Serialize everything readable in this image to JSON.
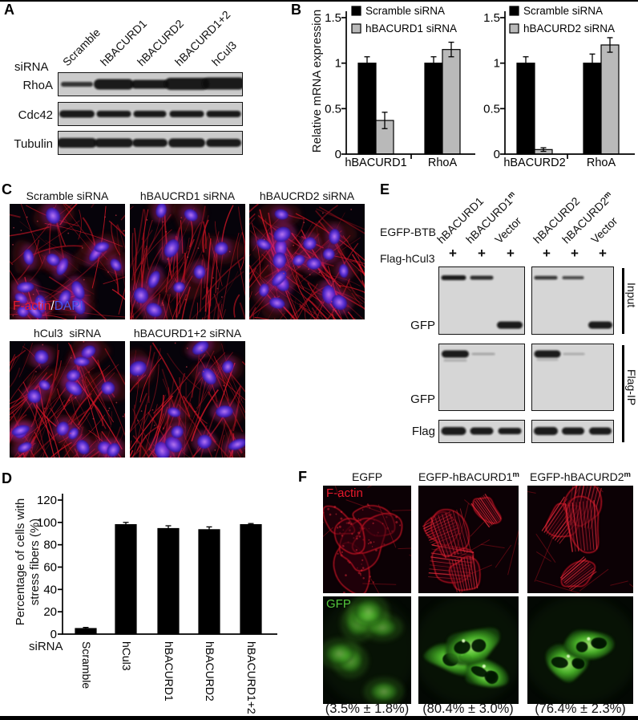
{
  "panels": {
    "A": {
      "letter": "A",
      "sirna_label": "siRNA",
      "lanes": [
        "Scramble",
        "hBACURD1",
        "hBACURD2",
        "hBACURD1+2",
        "hCul3"
      ],
      "rows": [
        "RhoA",
        "Cdc42",
        "Tubulin"
      ]
    },
    "B": {
      "letter": "B"
    },
    "C": {
      "letter": "C",
      "captions": [
        "Scramble siRNA",
        "hBAUCRD1 siRNA",
        "hBAUCRD2 siRNA",
        "hCul3  siRNA",
        "hBACURD1+2 siRNA"
      ],
      "overlay": {
        "factin": "F-actin",
        "slash": "/",
        "dapi": "DAPI"
      }
    },
    "D": {
      "letter": "D"
    },
    "E": {
      "letter": "E",
      "egfp_btb": "EGFP-BTB",
      "flag_hcul3": "Flag-hCul3",
      "plus": "+",
      "lanes": [
        {
          "t": "hBACURD1",
          "sup": ""
        },
        {
          "t": "hBACURD1",
          "sup": "m"
        },
        {
          "t": "Vector",
          "sup": ""
        },
        {
          "t": "hBACURD2",
          "sup": ""
        },
        {
          "t": "hBACURD2",
          "sup": "m"
        },
        {
          "t": "Vector",
          "sup": ""
        }
      ],
      "gfp": "GFP",
      "flag": "Flag",
      "input": "Input",
      "flag_ip": "Flag-IP"
    },
    "F": {
      "letter": "F",
      "headers": [
        {
          "t": "EGFP",
          "sup": ""
        },
        {
          "t": "EGFP-hBACURD1",
          "sup": "m"
        },
        {
          "t": "EGFP-hBACURD2",
          "sup": "m"
        }
      ],
      "factin": "F-actin",
      "gfp": "GFP",
      "percent": [
        "(3.5% ± 1.8%)",
        "(80.4% ± 3.0%)",
        "(76.4% ± 2.3%)"
      ]
    }
  },
  "chart_data": [
    {
      "id": "panelB-left",
      "type": "bar",
      "categories": [
        "hBACURD1",
        "RhoA"
      ],
      "series": [
        {
          "name": "Scramble siRNA",
          "color": "#000000",
          "values": [
            1.0,
            1.0
          ],
          "errors": [
            0.07,
            0.07
          ]
        },
        {
          "name": "hBACURD1 siRNA",
          "color": "#b9b9b9",
          "values": [
            0.37,
            1.15
          ],
          "errors": [
            0.09,
            0.08
          ]
        }
      ],
      "ylabel": "Relative mRNA expression",
      "ylim": [
        0,
        1.5
      ],
      "yticks": [
        0,
        0.5,
        1,
        1.5
      ],
      "legend_position": "top-left",
      "grid": false
    },
    {
      "id": "panelB-right",
      "type": "bar",
      "categories": [
        "hBACURD2",
        "RhoA"
      ],
      "series": [
        {
          "name": "Scramble siRNA",
          "color": "#000000",
          "values": [
            1.0,
            1.0
          ],
          "errors": [
            0.07,
            0.1
          ]
        },
        {
          "name": "hBACURD2 siRNA",
          "color": "#b9b9b9",
          "values": [
            0.05,
            1.2
          ],
          "errors": [
            0.02,
            0.08
          ]
        }
      ],
      "ylabel": "Relative mRNA expression",
      "ylim": [
        0,
        1.5
      ],
      "yticks": [
        0,
        0.5,
        1,
        1.5
      ],
      "legend_position": "top-left",
      "grid": false
    },
    {
      "id": "panelD",
      "type": "bar",
      "categories": [
        "Scramble",
        "hCul3",
        "hBACURD1",
        "hBACURD2",
        "hBACURD1+2"
      ],
      "series": [
        {
          "name": "",
          "color": "#000000",
          "values": [
            5,
            98,
            94.5,
            93.5,
            98
          ],
          "errors": [
            1,
            2,
            2.5,
            2.5,
            1
          ]
        }
      ],
      "ylabel": "Percentage of cells with stress fibers (%)",
      "ylabel_lines": [
        "Percentage of cells with",
        "stress fibers (%)"
      ],
      "xlabel": "siRNA",
      "ylim": [
        0,
        120
      ],
      "yticks": [
        0,
        20,
        40,
        60,
        80,
        100,
        120
      ],
      "grid": false
    }
  ]
}
